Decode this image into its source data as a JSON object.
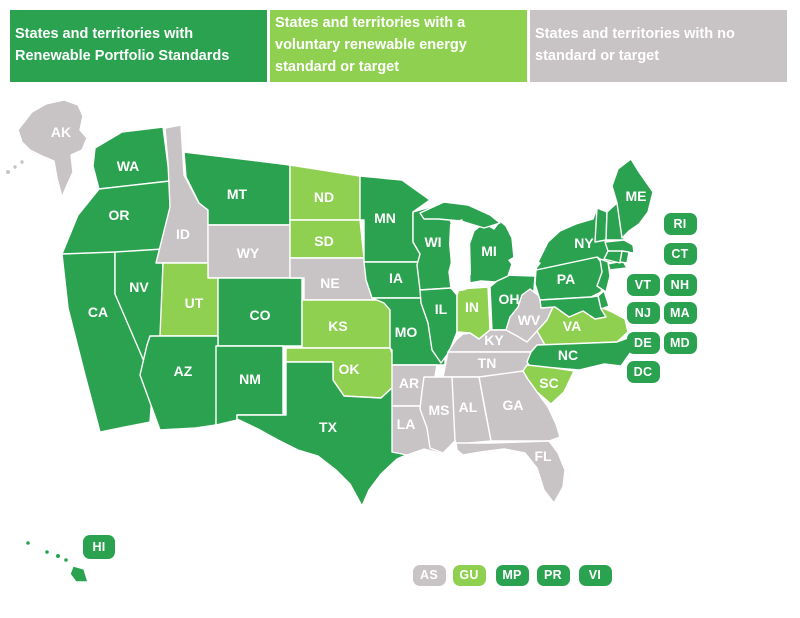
{
  "colors": {
    "rps": "#2BA24F",
    "voluntary": "#8FD051",
    "none": "#C8C3C4",
    "label_text": "#FFFFFF",
    "background": "#FFFFFF"
  },
  "legend": {
    "items": [
      {
        "label": "States and territories with Renewable Portfolio Standards",
        "category": "rps"
      },
      {
        "label": "States and territories with a voluntary renewable energy standard or target",
        "category": "voluntary"
      },
      {
        "label": "States and territories with no standard or target",
        "category": "none"
      }
    ]
  },
  "map": {
    "states": [
      {
        "abbr": "AK",
        "status": "none"
      },
      {
        "abbr": "WA",
        "status": "rps"
      },
      {
        "abbr": "OR",
        "status": "rps"
      },
      {
        "abbr": "CA",
        "status": "rps"
      },
      {
        "abbr": "NV",
        "status": "rps"
      },
      {
        "abbr": "ID",
        "status": "none"
      },
      {
        "abbr": "MT",
        "status": "rps"
      },
      {
        "abbr": "WY",
        "status": "none"
      },
      {
        "abbr": "UT",
        "status": "voluntary"
      },
      {
        "abbr": "CO",
        "status": "rps"
      },
      {
        "abbr": "AZ",
        "status": "rps"
      },
      {
        "abbr": "NM",
        "status": "rps"
      },
      {
        "abbr": "ND",
        "status": "voluntary"
      },
      {
        "abbr": "SD",
        "status": "voluntary"
      },
      {
        "abbr": "NE",
        "status": "none"
      },
      {
        "abbr": "KS",
        "status": "voluntary"
      },
      {
        "abbr": "OK",
        "status": "voluntary"
      },
      {
        "abbr": "TX",
        "status": "rps"
      },
      {
        "abbr": "MN",
        "status": "rps"
      },
      {
        "abbr": "IA",
        "status": "rps"
      },
      {
        "abbr": "MO",
        "status": "rps"
      },
      {
        "abbr": "AR",
        "status": "none"
      },
      {
        "abbr": "LA",
        "status": "none"
      },
      {
        "abbr": "WI",
        "status": "rps"
      },
      {
        "abbr": "IL",
        "status": "rps"
      },
      {
        "abbr": "IN",
        "status": "voluntary"
      },
      {
        "abbr": "OH",
        "status": "rps"
      },
      {
        "abbr": "MI",
        "status": "rps"
      },
      {
        "abbr": "KY",
        "status": "none"
      },
      {
        "abbr": "TN",
        "status": "none"
      },
      {
        "abbr": "WV",
        "status": "none"
      },
      {
        "abbr": "VA",
        "status": "voluntary"
      },
      {
        "abbr": "NC",
        "status": "rps"
      },
      {
        "abbr": "SC",
        "status": "voluntary"
      },
      {
        "abbr": "GA",
        "status": "none"
      },
      {
        "abbr": "AL",
        "status": "none"
      },
      {
        "abbr": "MS",
        "status": "none"
      },
      {
        "abbr": "FL",
        "status": "none"
      },
      {
        "abbr": "PA",
        "status": "rps"
      },
      {
        "abbr": "NY",
        "status": "rps"
      },
      {
        "abbr": "VT",
        "status": "rps"
      },
      {
        "abbr": "NH",
        "status": "rps"
      },
      {
        "abbr": "ME",
        "status": "rps"
      },
      {
        "abbr": "MA",
        "status": "rps"
      },
      {
        "abbr": "CT",
        "status": "rps"
      },
      {
        "abbr": "RI",
        "status": "rps"
      },
      {
        "abbr": "NJ",
        "status": "rps"
      },
      {
        "abbr": "DE",
        "status": "rps"
      },
      {
        "abbr": "MD",
        "status": "rps"
      },
      {
        "abbr": "HI",
        "status": "rps"
      }
    ],
    "side_badges": [
      {
        "label": "RI",
        "status": "rps"
      },
      {
        "label": "CT",
        "status": "rps"
      },
      {
        "label": "VT",
        "status": "rps"
      },
      {
        "label": "NH",
        "status": "rps"
      },
      {
        "label": "NJ",
        "status": "rps"
      },
      {
        "label": "MA",
        "status": "rps"
      },
      {
        "label": "DE",
        "status": "rps"
      },
      {
        "label": "MD",
        "status": "rps"
      },
      {
        "label": "DC",
        "status": "rps"
      }
    ],
    "territory_badges": [
      {
        "label": "AS",
        "status": "none"
      },
      {
        "label": "GU",
        "status": "voluntary"
      },
      {
        "label": "MP",
        "status": "rps"
      },
      {
        "label": "PR",
        "status": "rps"
      },
      {
        "label": "VI",
        "status": "rps"
      }
    ],
    "hawaii_badge": {
      "label": "HI",
      "status": "rps"
    }
  }
}
